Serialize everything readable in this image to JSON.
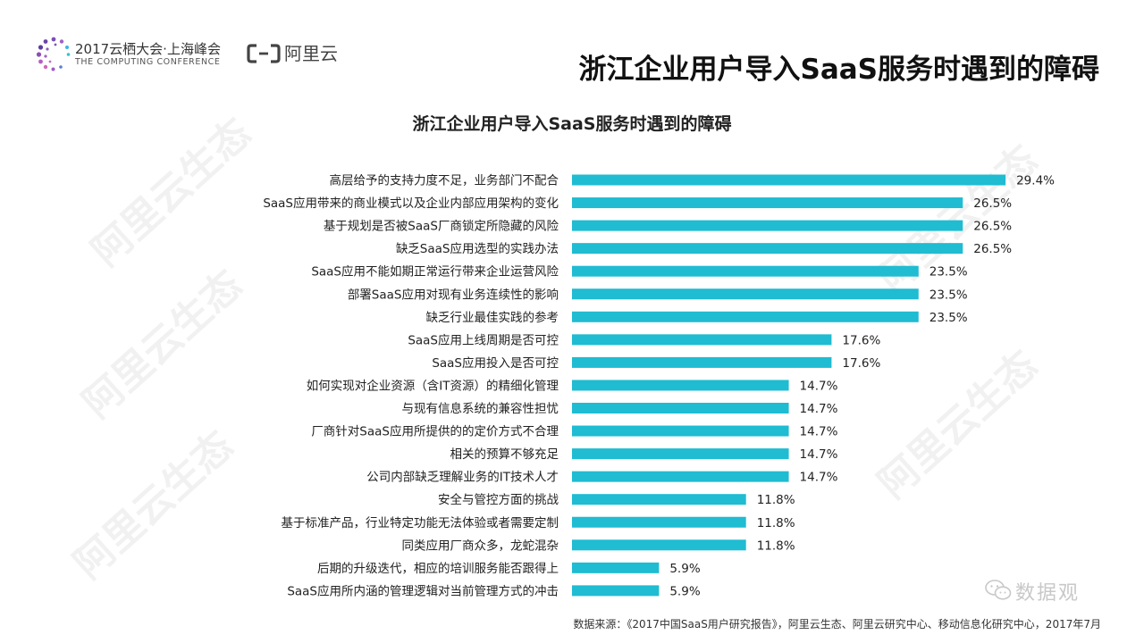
{
  "header": {
    "conference_title": "2017云栖大会·上海峰会",
    "conference_subtitle": "THE COMPUTING CONFERENCE",
    "brand": "阿里云",
    "page_title": "浙江企业用户导入SaaS服务时遇到的障碍"
  },
  "chart_data": {
    "type": "bar",
    "orientation": "horizontal",
    "title": "浙江企业用户导入SaaS服务时遇到的障碍",
    "bar_color": "#1fbcd2",
    "categories": [
      "高层给予的支持力度不足，业务部门不配合",
      "SaaS应用带来的商业模式以及企业内部应用架构的变化",
      "基于规划是否被SaaS厂商锁定所隐藏的风险",
      "缺乏SaaS应用选型的实践办法",
      "SaaS应用不能如期正常运行带来企业运营风险",
      "部署SaaS应用对现有业务连续性的影响",
      "缺乏行业最佳实践的参考",
      "SaaS应用上线周期是否可控",
      "SaaS应用投入是否可控",
      "如何实现对企业资源（含IT资源）的精细化管理",
      "与现有信息系统的兼容性担忧",
      "厂商针对SaaS应用所提供的的定价方式不合理",
      "相关的预算不够充足",
      "公司内部缺乏理解业务的IT技术人才",
      "安全与管控方面的挑战",
      "基于标准产品，行业特定功能无法体验或者需要定制",
      "同类应用厂商众多，龙蛇混杂",
      "后期的升级迭代，相应的培训服务能否跟得上",
      "SaaS应用所内涵的管理逻辑对当前管理方式的冲击"
    ],
    "values": [
      29.4,
      26.5,
      26.5,
      26.5,
      23.5,
      23.5,
      23.5,
      17.6,
      17.6,
      14.7,
      14.7,
      14.7,
      14.7,
      14.7,
      11.8,
      11.8,
      11.8,
      5.9,
      5.9
    ],
    "value_labels": [
      "29.4%",
      "26.5%",
      "26.5%",
      "26.5%",
      "23.5%",
      "23.5%",
      "23.5%",
      "17.6%",
      "17.6%",
      "14.7%",
      "14.7%",
      "14.7%",
      "14.7%",
      "14.7%",
      "11.8%",
      "11.8%",
      "11.8%",
      "5.9%",
      "5.9%"
    ],
    "unit": "%",
    "grid": false,
    "legend": "none"
  },
  "footer": {
    "source": "数据来源：《2017中国SaaS用户研究报告》，阿里云生态、阿里云研究中心、移动信息化研究中心，2017年7月",
    "stamp_text": "数据观"
  },
  "watermark": {
    "text": "阿里云生态"
  },
  "icons": {
    "conference_logo": "dotted-ring-logo-icon",
    "brand_logo": "aliyun-bracket-logo-icon",
    "stamp_logo": "wechat-icon"
  }
}
